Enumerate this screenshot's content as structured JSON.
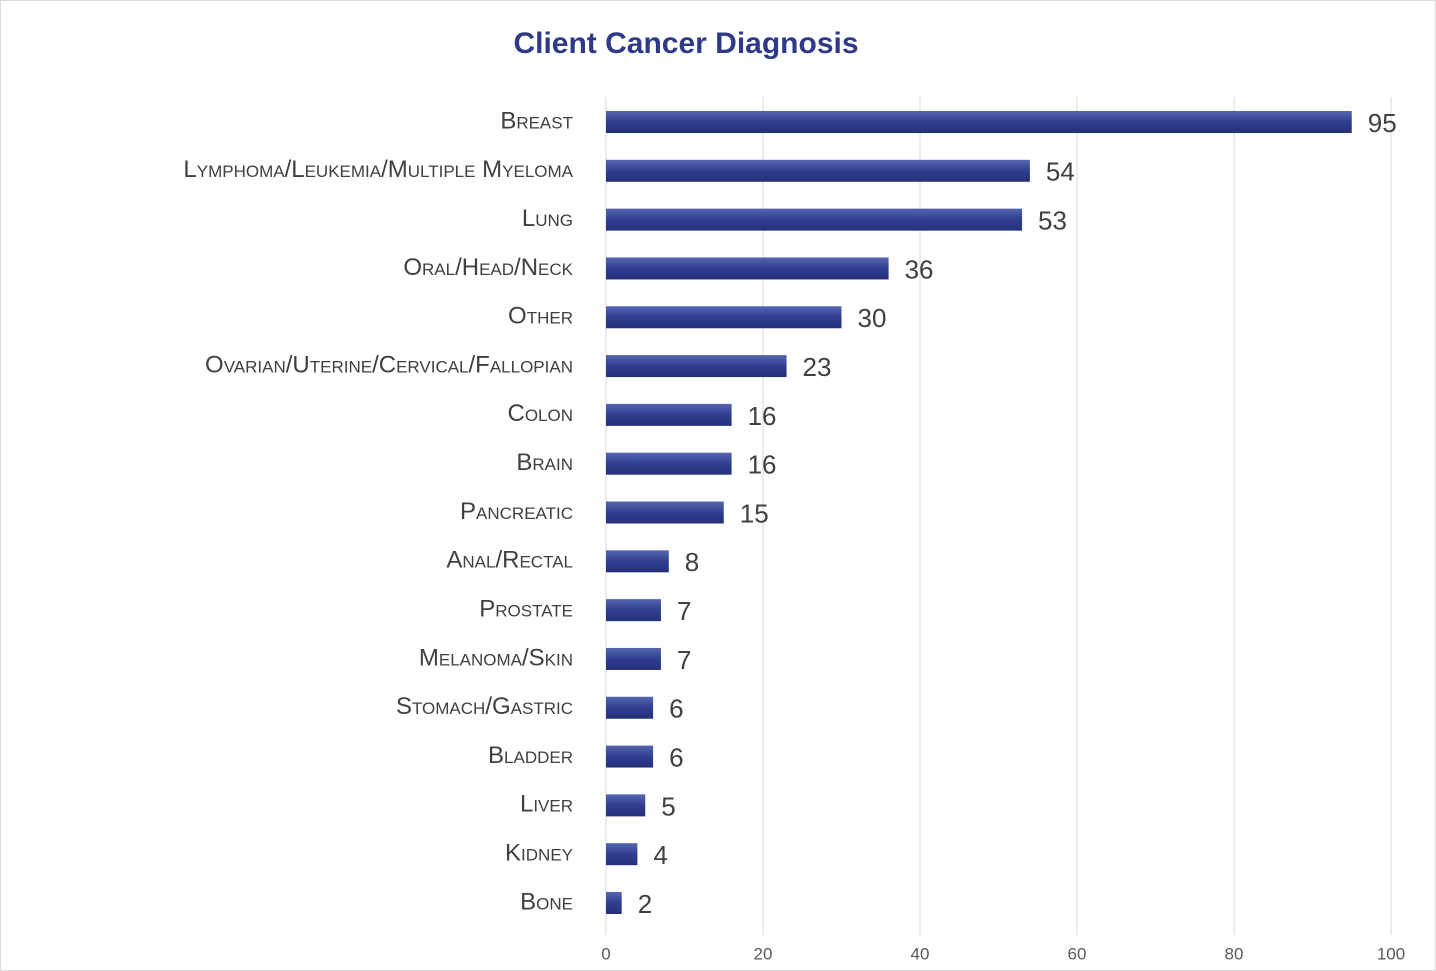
{
  "chart_data": {
    "type": "bar",
    "orientation": "horizontal",
    "title": "Client Cancer Diagnosis",
    "categories": [
      "Breast",
      "Lymphoma/Leukemia/Multiple Myeloma",
      "Lung",
      "Oral/Head/Neck",
      "Other",
      "Ovarian/Uterine/Cervical/Fallopian",
      "Colon",
      "Brain",
      "Pancreatic",
      "Anal/Rectal",
      "Prostate",
      "Melanoma/Skin",
      "Stomach/Gastric",
      "Bladder",
      "Liver",
      "Kidney",
      "Bone"
    ],
    "values": [
      95,
      54,
      53,
      36,
      30,
      23,
      16,
      16,
      15,
      8,
      7,
      7,
      6,
      6,
      5,
      4,
      2
    ],
    "color": "#2f3f8f",
    "xlim": [
      0,
      100
    ],
    "xticks": [
      0,
      20,
      40,
      60,
      80,
      100
    ],
    "grid": true
  }
}
